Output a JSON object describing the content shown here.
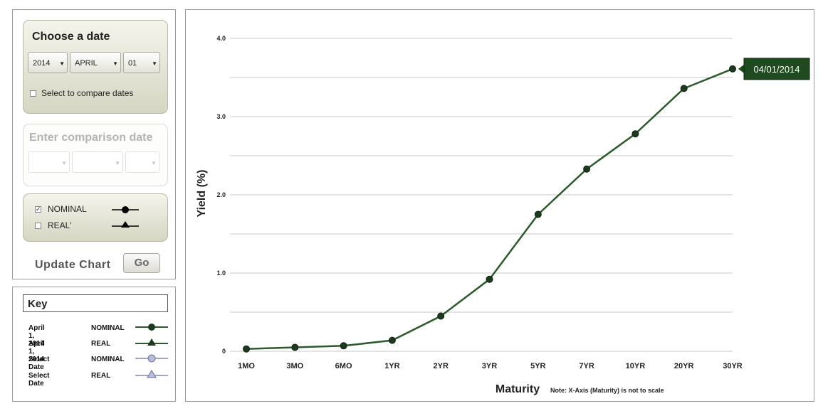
{
  "controls": {
    "choose_date_title": "Choose a date",
    "year": "2014",
    "month": "APRIL",
    "day": "01",
    "compare_label": "Select to compare dates",
    "comparison_title": "Enter comparison date",
    "nominal_label": "NOMINAL",
    "real_label": "REAL'",
    "update_label": "Update Chart",
    "go_label": "Go"
  },
  "key": {
    "title": "Key",
    "rows": [
      {
        "date": "April 1, 2014",
        "type": "NOMINAL",
        "symbol": "filled-circle-icon"
      },
      {
        "date": "April 1, 2014",
        "type": "REAL",
        "symbol": "filled-triangle-icon"
      },
      {
        "date": "Select Date",
        "type": "NOMINAL",
        "symbol": "open-circle-icon"
      },
      {
        "date": "Select Date",
        "type": "REAL",
        "symbol": "open-triangle-icon"
      }
    ]
  },
  "colors": {
    "line": "#2c5a2c",
    "marker": "#1e3a1e",
    "compare_line": "#6e6ea0",
    "compare_marker": "#b8bdd8",
    "tooltip_bg": "#1f4a1f",
    "grid": "#c8c8c8"
  },
  "chart_data": {
    "type": "line",
    "title": "",
    "xlabel": "Maturity",
    "ylabel": "Yield (%)",
    "note": "Note: X-Axis (Maturity) is not to scale",
    "categories": [
      "1MO",
      "3MO",
      "6MO",
      "1YR",
      "2YR",
      "3YR",
      "5YR",
      "7YR",
      "10YR",
      "20YR",
      "30YR"
    ],
    "y_ticks": [
      "0",
      "1.0",
      "2.0",
      "3.0",
      "4.0"
    ],
    "ylim": [
      0,
      4.0
    ],
    "grid": true,
    "series": [
      {
        "name": "04/01/2014",
        "values": [
          0.03,
          0.05,
          0.07,
          0.14,
          0.45,
          0.92,
          1.75,
          2.33,
          2.78,
          3.36,
          3.61
        ]
      }
    ],
    "tooltip_label": "04/01/2014"
  }
}
